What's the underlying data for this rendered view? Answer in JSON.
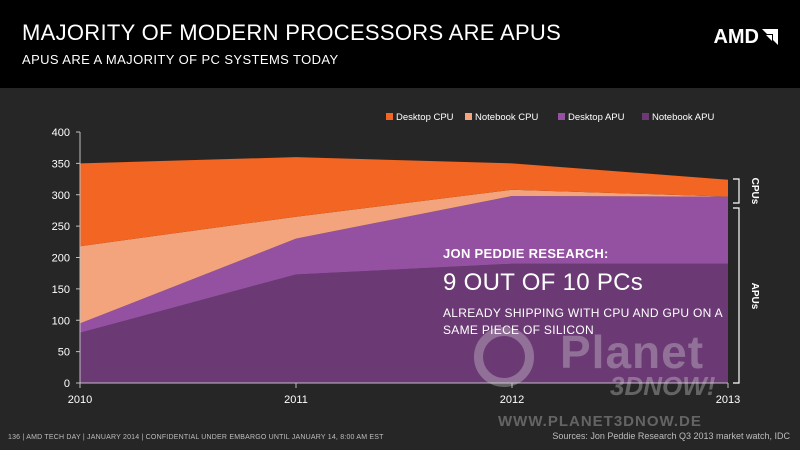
{
  "header": {
    "title": "MAJORITY OF MODERN PROCESSORS ARE APUS",
    "subtitle": "APUS ARE A MAJORITY OF PC SYSTEMS TODAY",
    "logo_text": "AMD",
    "logo_icon": "amd-arrow-icon"
  },
  "callout": {
    "heading": "JON PEDDIE RESEARCH:",
    "big": "9 OUT OF 10 PCs",
    "body": "ALREADY SHIPPING WITH CPU AND GPU ON A SAME PIECE OF SILICON"
  },
  "brackets": {
    "cpus": "CPUs",
    "apus": "APUs"
  },
  "watermark": {
    "line1": "Planet",
    "line2": "3DNOW!",
    "url": "WWW.PLANET3DNOW.DE"
  },
  "footer": {
    "left": "136  |  AMD TECH DAY  |  JANUARY 2014  |  CONFIDENTIAL UNDER EMBARGO UNTIL JANUARY 14, 8:00 AM EST",
    "right": "Sources: Jon Peddie Research Q3 2013 market watch, IDC"
  },
  "chart_data": {
    "type": "area",
    "stacked": true,
    "x": [
      "2010",
      "2011",
      "2012",
      "2013"
    ],
    "ylim": [
      0,
      400
    ],
    "yticks": [
      0,
      50,
      100,
      150,
      200,
      250,
      300,
      350,
      400
    ],
    "grid": false,
    "legend_position": "top-right",
    "series": [
      {
        "name": "Notebook APU",
        "values": [
          80,
          173,
          190,
          190
        ],
        "color": "#6b3a74"
      },
      {
        "name": "Desktop APU",
        "values": [
          15,
          57,
          108,
          107
        ],
        "color": "#9450a1"
      },
      {
        "name": "Notebook CPU",
        "values": [
          123,
          35,
          10,
          0
        ],
        "color": "#f3a47c"
      },
      {
        "name": "Desktop CPU",
        "values": [
          132,
          95,
          42,
          27
        ],
        "color": "#f26522"
      }
    ],
    "legend_order": [
      "Desktop CPU",
      "Notebook CPU",
      "Desktop APU",
      "Notebook APU"
    ]
  }
}
